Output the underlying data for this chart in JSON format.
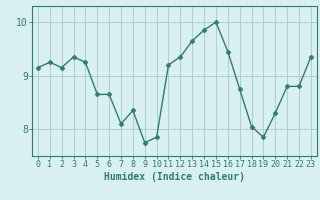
{
  "x": [
    0,
    1,
    2,
    3,
    4,
    5,
    6,
    7,
    8,
    9,
    10,
    11,
    12,
    13,
    14,
    15,
    16,
    17,
    18,
    19,
    20,
    21,
    22,
    23
  ],
  "y": [
    9.15,
    9.25,
    9.15,
    9.35,
    9.25,
    8.65,
    8.65,
    8.1,
    8.35,
    7.75,
    7.85,
    9.2,
    9.35,
    9.65,
    9.85,
    10.0,
    9.45,
    8.75,
    8.05,
    7.85,
    8.3,
    8.8,
    8.8,
    9.35
  ],
  "line_color": "#2e7d6e",
  "marker": "D",
  "marker_size": 2.5,
  "line_width": 1.0,
  "bg_color": "#d9f0f0",
  "grid_color": "#aac8c8",
  "xlabel": "Humidex (Indice chaleur)",
  "xlabel_fontsize": 7,
  "tick_fontsize": 6,
  "ylim": [
    7.5,
    10.3
  ],
  "yticks": [
    8,
    9,
    10
  ],
  "xticks": [
    0,
    1,
    2,
    3,
    4,
    5,
    6,
    7,
    8,
    9,
    10,
    11,
    12,
    13,
    14,
    15,
    16,
    17,
    18,
    19,
    20,
    21,
    22,
    23
  ],
  "axes_color": "#2e7d6e",
  "tick_label_color": "#2e7d6e"
}
